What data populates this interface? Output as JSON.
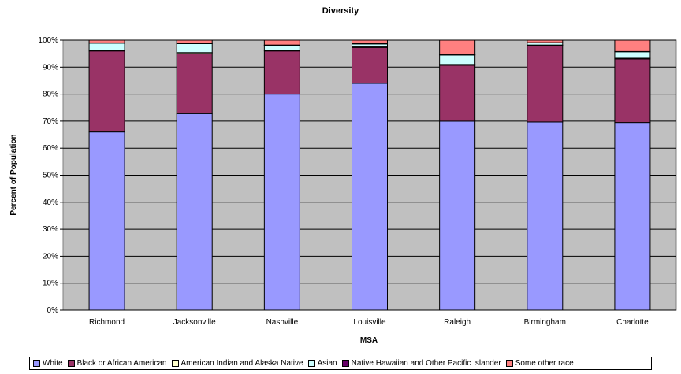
{
  "chart_data": {
    "type": "bar",
    "stacked": true,
    "title": "Diversity",
    "xlabel": "MSA",
    "ylabel": "Percent of Population",
    "ylim": [
      0,
      100
    ],
    "y_ticks": [
      "0%",
      "10%",
      "20%",
      "30%",
      "40%",
      "50%",
      "60%",
      "70%",
      "80%",
      "90%",
      "100%"
    ],
    "categories": [
      "Richmond",
      "Jacksonville",
      "Nashville",
      "Louisville",
      "Raleigh",
      "Birmingham",
      "Charlotte"
    ],
    "plot_background": "#C0C0C0",
    "grid": true,
    "legend_position": "bottom",
    "series": [
      {
        "name": "White",
        "color": "#9999FF",
        "values": [
          66,
          72.8,
          80,
          84,
          70,
          69.7,
          69.5
        ]
      },
      {
        "name": "Black or African American",
        "color": "#993366",
        "values": [
          30,
          22.2,
          16,
          13.3,
          20.7,
          28.3,
          23.5
        ]
      },
      {
        "name": "American Indian and Alaska Native",
        "color": "#FFFFCC",
        "values": [
          0.3,
          0.4,
          0.3,
          0.2,
          0.3,
          0.2,
          0.3
        ]
      },
      {
        "name": "Asian",
        "color": "#CCFFFF",
        "values": [
          2.6,
          3.3,
          1.8,
          1.1,
          3.5,
          0.8,
          2.4
        ]
      },
      {
        "name": "Native Hawaiian and Other Pacific Islander",
        "color": "#660066",
        "values": [
          0.1,
          0.1,
          0.1,
          0.1,
          0.1,
          0.1,
          0.1
        ]
      },
      {
        "name": "Some other race",
        "color": "#FF8080",
        "values": [
          1.0,
          1.2,
          1.8,
          1.3,
          5.4,
          0.9,
          4.2
        ]
      }
    ]
  }
}
